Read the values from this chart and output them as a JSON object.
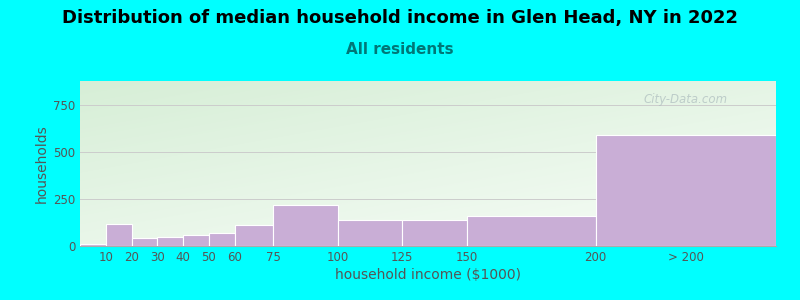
{
  "title": "Distribution of median household income in Glen Head, NY in 2022",
  "subtitle": "All residents",
  "xlabel": "household income ($1000)",
  "ylabel": "households",
  "bar_values": [
    10,
    115,
    40,
    50,
    60,
    70,
    110,
    215,
    140,
    140,
    160,
    590
  ],
  "bar_color": "#c9aed6",
  "ylim": [
    0,
    875
  ],
  "yticks": [
    0,
    250,
    500,
    750
  ],
  "bg_color": "#00ffff",
  "title_fontsize": 13,
  "subtitle_fontsize": 11,
  "subtitle_color": "#007777",
  "axis_label_fontsize": 10,
  "tick_fontsize": 8.5,
  "watermark": "City-Data.com",
  "bin_lefts": [
    0,
    10,
    20,
    30,
    40,
    50,
    60,
    75,
    100,
    125,
    150,
    200
  ],
  "bin_widths": [
    10,
    10,
    10,
    10,
    10,
    10,
    15,
    25,
    25,
    25,
    50,
    70
  ],
  "xtick_positions": [
    10,
    20,
    30,
    40,
    50,
    60,
    75,
    100,
    125,
    150,
    200,
    235
  ],
  "xtick_labels": [
    "10",
    "20",
    "30",
    "40",
    "50",
    "60",
    "75",
    "100",
    "125",
    "150",
    "200",
    "> 200"
  ],
  "xlim": [
    0,
    270
  ]
}
